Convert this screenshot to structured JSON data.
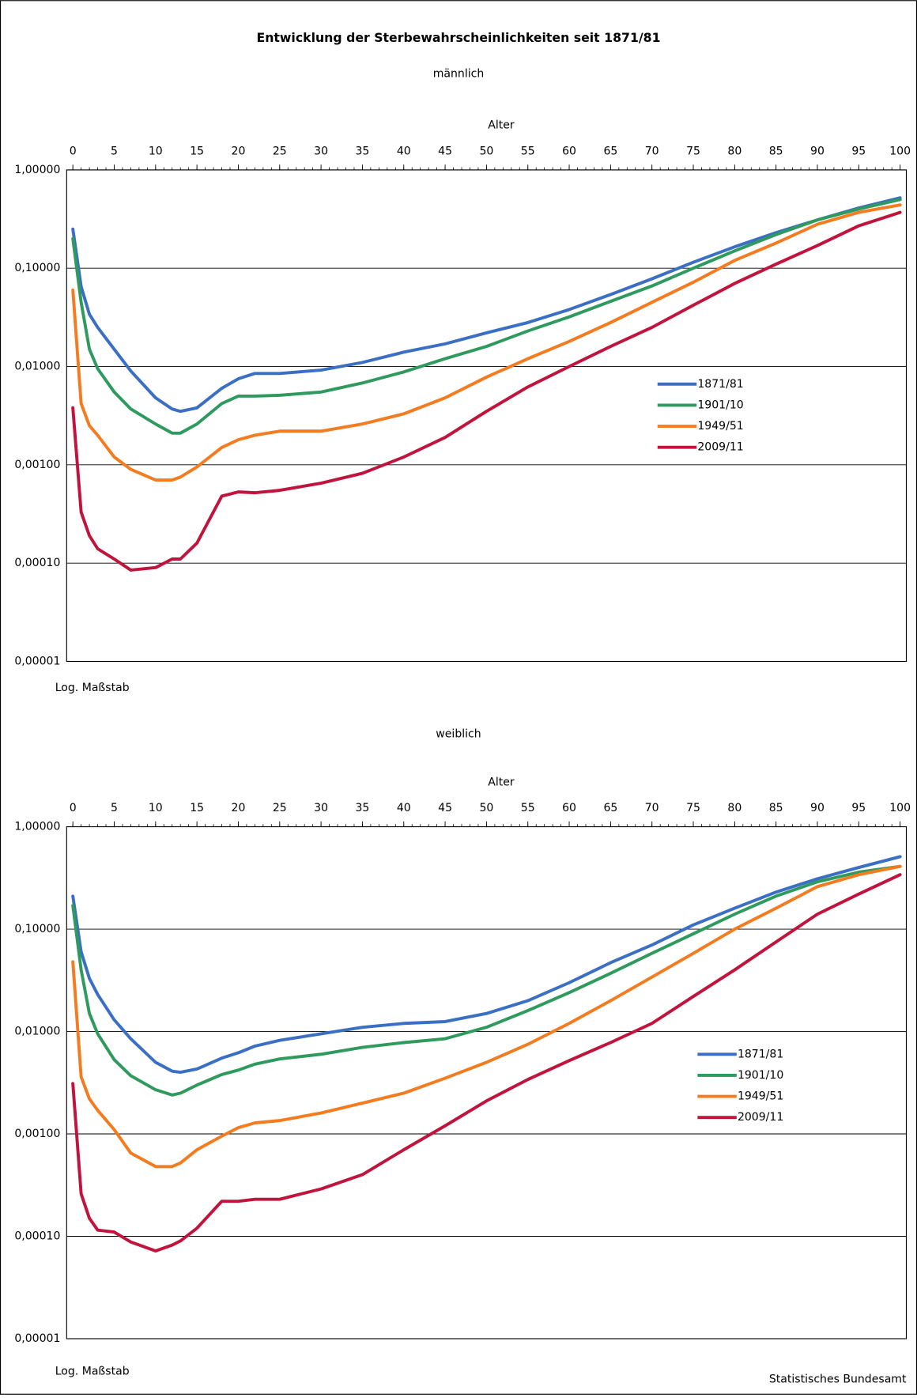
{
  "title": "Entwicklung der Sterbewahrscheinlichkeiten seit 1871/81",
  "source": "Statistisches Bundesamt",
  "chart_data": [
    {
      "type": "line",
      "subtitle": "männlich",
      "xlabel": "Alter",
      "note": "Log. Maßstab",
      "log_scale": true,
      "grid": true,
      "legend": "right",
      "xlim": [
        0,
        100
      ],
      "xticks": [
        0,
        5,
        10,
        15,
        20,
        25,
        30,
        35,
        40,
        45,
        50,
        55,
        60,
        65,
        70,
        75,
        80,
        85,
        90,
        95,
        100
      ],
      "ylim": [
        1e-05,
        1
      ],
      "yticks": [
        {
          "value": 1e-05,
          "label": "0,00001"
        },
        {
          "value": 0.0001,
          "label": "0,00010"
        },
        {
          "value": 0.001,
          "label": "0,00100"
        },
        {
          "value": 0.01,
          "label": "0,01000"
        },
        {
          "value": 0.1,
          "label": "0,10000"
        },
        {
          "value": 1,
          "label": "1,00000"
        }
      ],
      "x": [
        0,
        1,
        2,
        3,
        5,
        7,
        10,
        12,
        13,
        15,
        18,
        20,
        22,
        25,
        30,
        35,
        40,
        45,
        50,
        55,
        60,
        65,
        70,
        75,
        80,
        85,
        90,
        95,
        100
      ],
      "series": [
        {
          "name": "1871/81",
          "color": "#3a6fc4",
          "values": [
            0.25,
            0.065,
            0.034,
            0.025,
            0.015,
            0.009,
            0.0048,
            0.0037,
            0.0035,
            0.0038,
            0.006,
            0.0075,
            0.0085,
            0.0085,
            0.0092,
            0.011,
            0.014,
            0.017,
            0.022,
            0.028,
            0.038,
            0.054,
            0.078,
            0.115,
            0.165,
            0.23,
            0.31,
            0.41,
            0.52
          ]
        },
        {
          "name": "1901/10",
          "color": "#2e9a5e",
          "values": [
            0.2,
            0.045,
            0.015,
            0.0095,
            0.0055,
            0.0037,
            0.0026,
            0.0021,
            0.0021,
            0.0026,
            0.0042,
            0.005,
            0.005,
            0.0051,
            0.0055,
            0.0068,
            0.0088,
            0.012,
            0.016,
            0.023,
            0.032,
            0.046,
            0.066,
            0.1,
            0.15,
            0.22,
            0.31,
            0.4,
            0.5
          ]
        },
        {
          "name": "1949/51",
          "color": "#f47c20",
          "values": [
            0.06,
            0.0042,
            0.0025,
            0.002,
            0.0012,
            0.0009,
            0.0007,
            0.0007,
            0.00075,
            0.00095,
            0.0015,
            0.0018,
            0.002,
            0.0022,
            0.0022,
            0.0026,
            0.0033,
            0.0048,
            0.0078,
            0.012,
            0.018,
            0.028,
            0.045,
            0.072,
            0.12,
            0.18,
            0.28,
            0.37,
            0.44
          ]
        },
        {
          "name": "2009/11",
          "color": "#c0143c",
          "values": [
            0.0038,
            0.00033,
            0.00019,
            0.00014,
            0.00011,
            8.5e-05,
            9e-05,
            0.00011,
            0.00011,
            0.00016,
            0.00048,
            0.00053,
            0.00052,
            0.00055,
            0.00065,
            0.00082,
            0.0012,
            0.0019,
            0.0035,
            0.0062,
            0.01,
            0.016,
            0.025,
            0.042,
            0.07,
            0.11,
            0.17,
            0.27,
            0.37
          ]
        }
      ]
    },
    {
      "type": "line",
      "subtitle": "weiblich",
      "xlabel": "Alter",
      "note": "Log. Maßstab",
      "log_scale": true,
      "grid": true,
      "legend": "right",
      "xlim": [
        0,
        100
      ],
      "xticks": [
        0,
        5,
        10,
        15,
        20,
        25,
        30,
        35,
        40,
        45,
        50,
        55,
        60,
        65,
        70,
        75,
        80,
        85,
        90,
        95,
        100
      ],
      "ylim": [
        1e-05,
        1
      ],
      "yticks": [
        {
          "value": 1e-05,
          "label": "0,00001"
        },
        {
          "value": 0.0001,
          "label": "0,00010"
        },
        {
          "value": 0.001,
          "label": "0,00100"
        },
        {
          "value": 0.01,
          "label": "0,01000"
        },
        {
          "value": 0.1,
          "label": "0,10000"
        },
        {
          "value": 1,
          "label": "1,00000"
        }
      ],
      "x": [
        0,
        1,
        2,
        3,
        5,
        7,
        10,
        12,
        13,
        15,
        18,
        20,
        22,
        25,
        30,
        35,
        40,
        45,
        50,
        55,
        60,
        65,
        70,
        75,
        80,
        85,
        90,
        95,
        100
      ],
      "series": [
        {
          "name": "1871/81",
          "color": "#3a6fc4",
          "values": [
            0.21,
            0.06,
            0.033,
            0.023,
            0.013,
            0.0085,
            0.005,
            0.0041,
            0.004,
            0.0043,
            0.0055,
            0.0062,
            0.0072,
            0.0082,
            0.0095,
            0.011,
            0.012,
            0.0125,
            0.015,
            0.02,
            0.03,
            0.047,
            0.07,
            0.11,
            0.16,
            0.23,
            0.31,
            0.4,
            0.51
          ]
        },
        {
          "name": "1901/10",
          "color": "#2e9a5e",
          "values": [
            0.17,
            0.04,
            0.015,
            0.0095,
            0.0053,
            0.0037,
            0.0027,
            0.0024,
            0.0025,
            0.003,
            0.0038,
            0.0042,
            0.0048,
            0.0054,
            0.006,
            0.007,
            0.0078,
            0.0085,
            0.011,
            0.016,
            0.024,
            0.037,
            0.058,
            0.09,
            0.14,
            0.21,
            0.29,
            0.36,
            0.41
          ]
        },
        {
          "name": "1949/51",
          "color": "#f47c20",
          "values": [
            0.048,
            0.0036,
            0.0022,
            0.0017,
            0.0011,
            0.00065,
            0.00048,
            0.00048,
            0.00052,
            0.0007,
            0.00095,
            0.00115,
            0.00128,
            0.00135,
            0.0016,
            0.002,
            0.0025,
            0.0035,
            0.005,
            0.0075,
            0.012,
            0.02,
            0.034,
            0.058,
            0.1,
            0.16,
            0.26,
            0.34,
            0.41
          ]
        },
        {
          "name": "2009/11",
          "color": "#c0143c",
          "values": [
            0.0031,
            0.00026,
            0.00015,
            0.000115,
            0.00011,
            8.8e-05,
            7.2e-05,
            8.2e-05,
            9e-05,
            0.00012,
            0.00022,
            0.00022,
            0.00023,
            0.00023,
            0.00029,
            0.0004,
            0.0007,
            0.0012,
            0.0021,
            0.0034,
            0.0052,
            0.0078,
            0.012,
            0.022,
            0.04,
            0.075,
            0.14,
            0.22,
            0.34
          ]
        }
      ]
    }
  ]
}
